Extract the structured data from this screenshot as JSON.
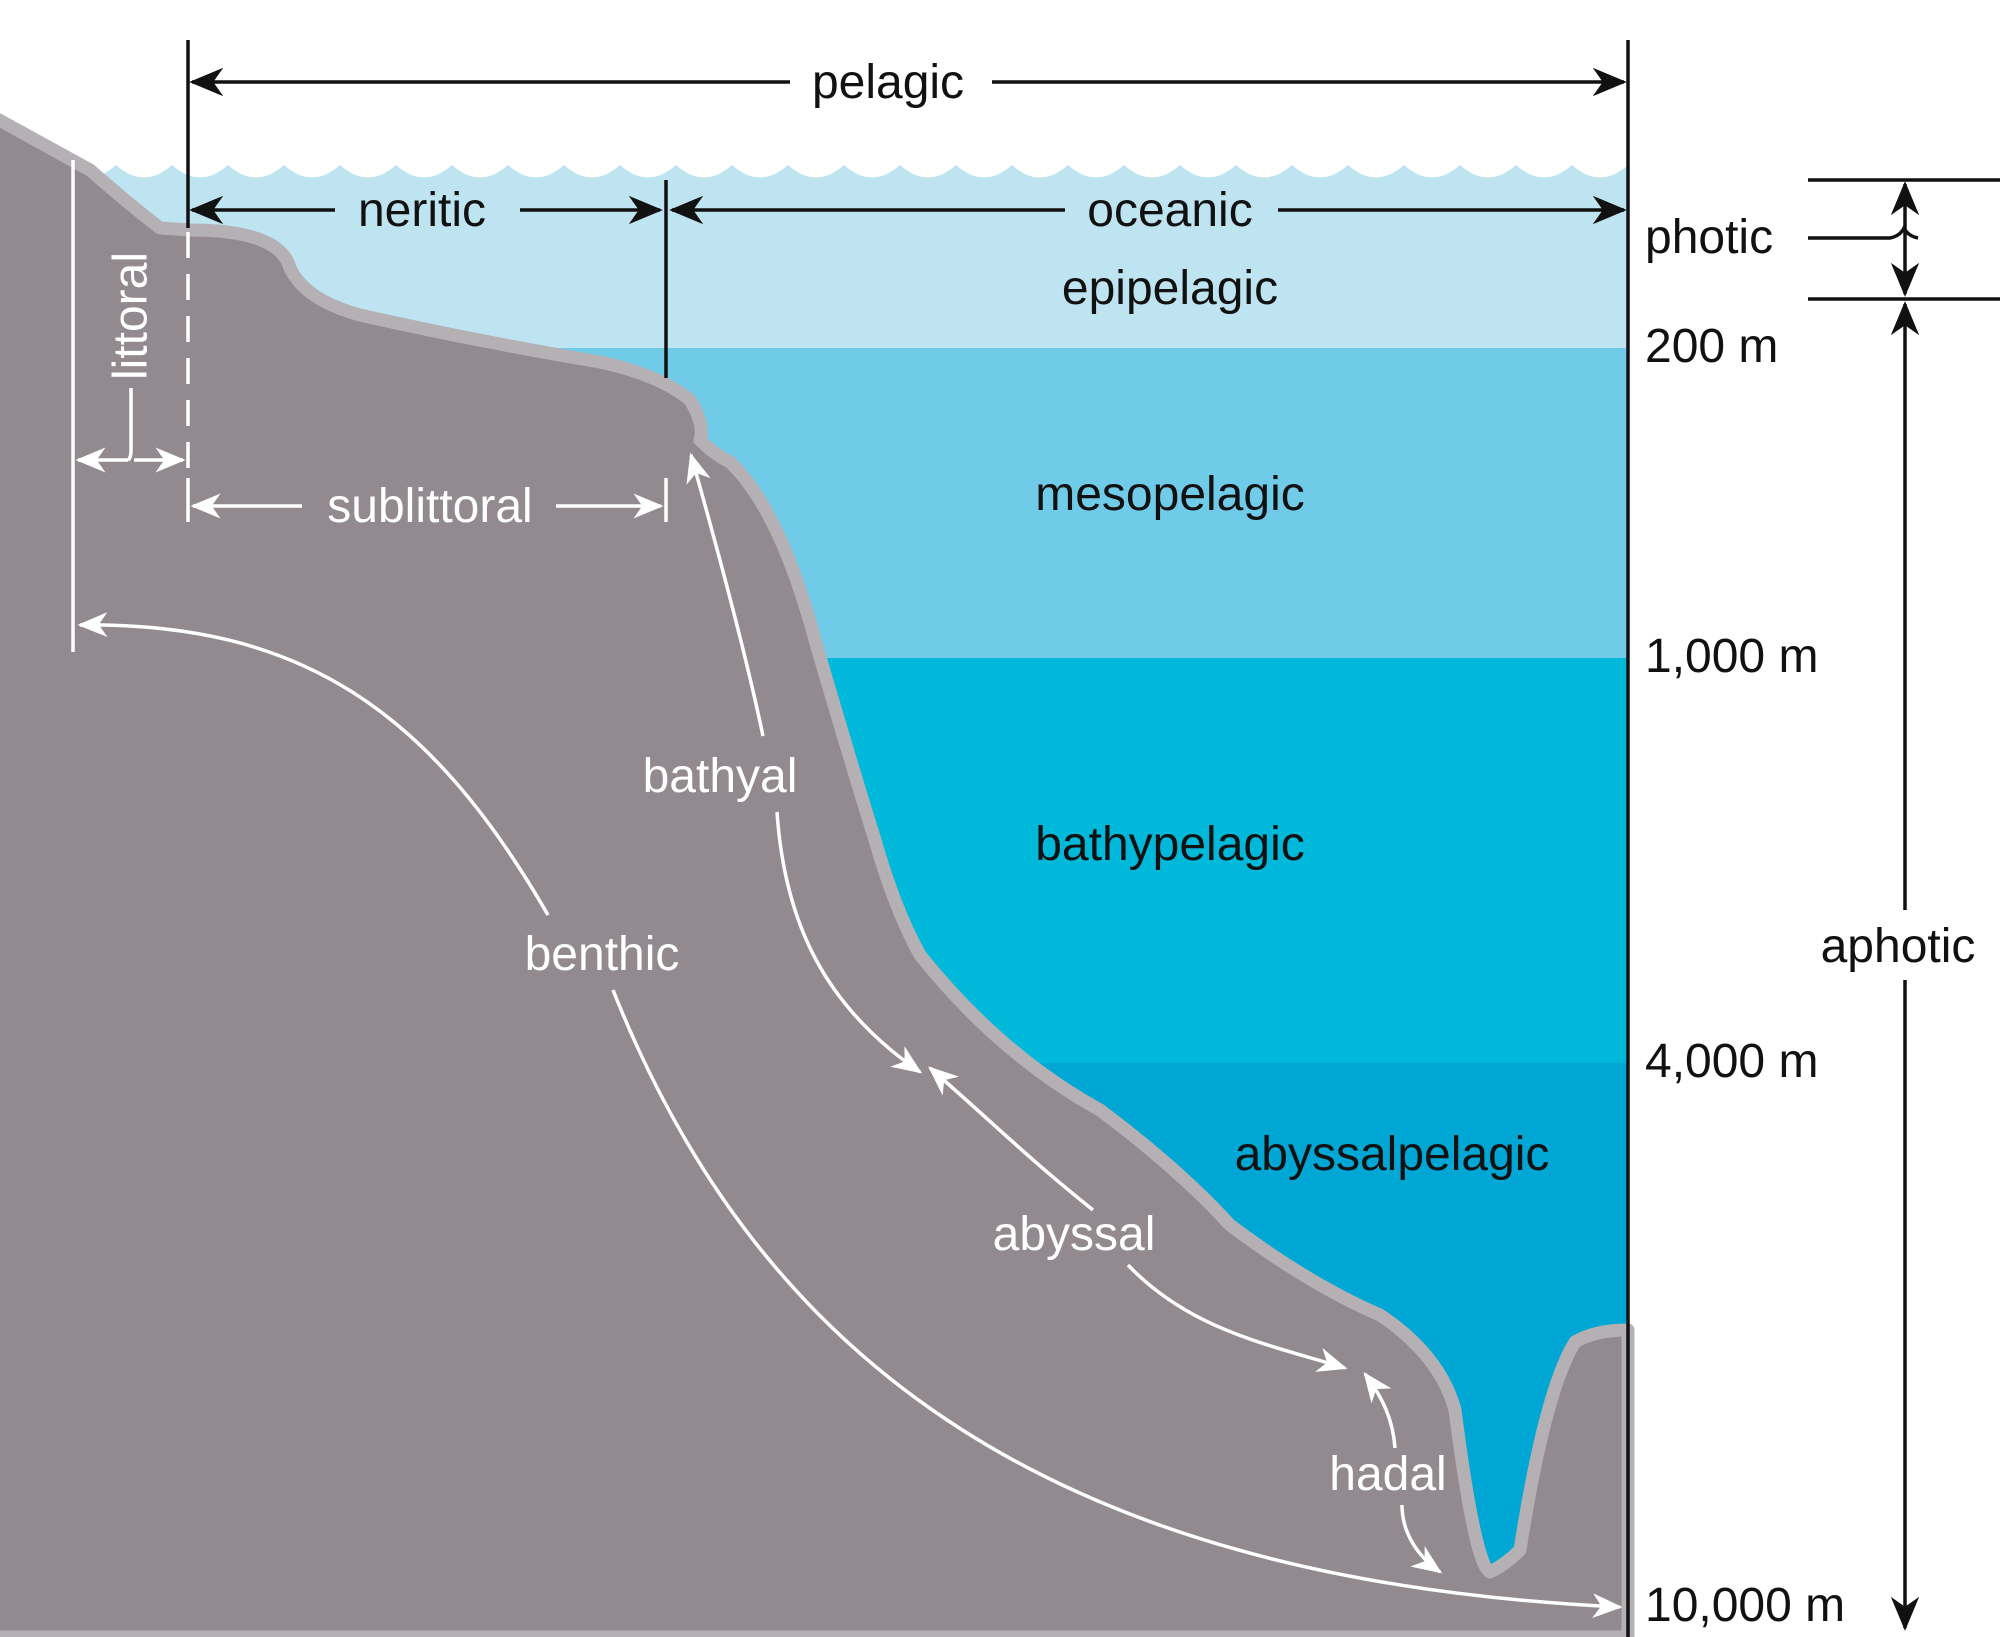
{
  "labels": {
    "pelagic": "pelagic",
    "neritic": "neritic",
    "oceanic": "oceanic",
    "photic": "photic",
    "aphotic": "aphotic",
    "littoral": "littoral",
    "sublittoral": "sublittoral",
    "benthic": "benthic",
    "bathyal": "bathyal",
    "abyssal": "abyssal",
    "hadal": "hadal"
  },
  "zones": [
    "epipelagic",
    "mesopelagic",
    "bathypelagic",
    "abyssalpelagic"
  ],
  "depths": [
    "200 m",
    "1,000 m",
    "4,000 m",
    "10,000 m"
  ],
  "colors": {
    "epipelagic": "#bde4f0",
    "mesopelagic": "#70cbe8",
    "bathypelagic": "#00b8da",
    "abyssalpelagic": "#00a7d4",
    "seafloor": "#928a8f",
    "seafloor_rim": "#b5b0b4",
    "ink": "#111111"
  }
}
